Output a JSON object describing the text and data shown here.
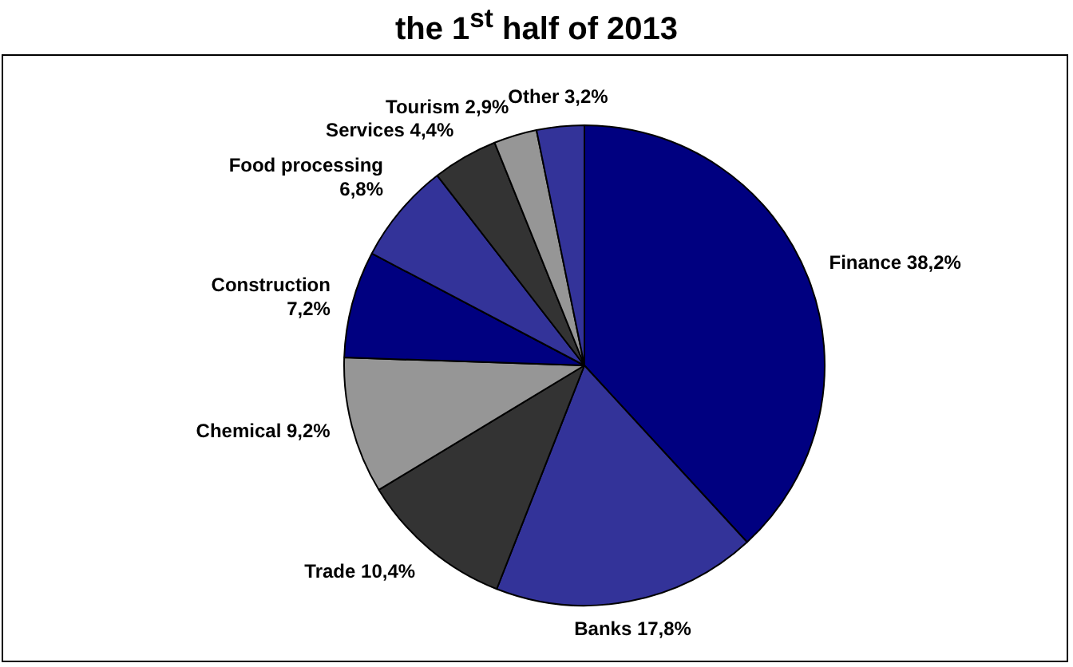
{
  "chart_data": {
    "type": "pie",
    "title": "the 1$^{st}$ half of 2013",
    "categories": [
      "Finance",
      "Banks",
      "Trade",
      "Chemical",
      "Construction",
      "Food processing",
      "Services",
      "Tourism",
      "Other"
    ],
    "values": [
      38.2,
      17.8,
      10.4,
      9.2,
      7.2,
      6.8,
      4.4,
      2.9,
      3.2
    ],
    "value_labels": [
      "38,2%",
      "17,8%",
      "10,4%",
      "9,2%",
      "7,2%",
      "6,8%",
      "4,4%",
      "2,9%",
      "3,2%"
    ],
    "colors": [
      "#000080",
      "#333399",
      "#333333",
      "#969696",
      "#000080",
      "#333399",
      "#333333",
      "#969696",
      "#333399"
    ],
    "legend": false
  }
}
